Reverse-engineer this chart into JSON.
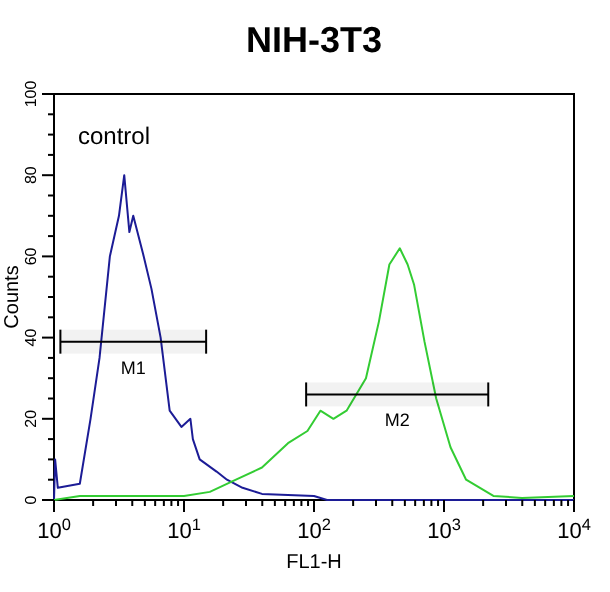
{
  "chart_data": {
    "type": "line",
    "title": "NIH-3T3",
    "xlabel": "FL1-H",
    "ylabel": "Counts",
    "log": "x",
    "xlim": [
      1,
      10000
    ],
    "xticks": [
      {
        "value": 1,
        "label": "10$^{0}$"
      },
      {
        "value": 10,
        "label": "10$^{1}$"
      },
      {
        "value": 100,
        "label": "10$^{2}$"
      },
      {
        "value": 1000,
        "label": "10$^{3}$"
      },
      {
        "value": 10000,
        "label": "10$^{4}$"
      }
    ],
    "ylim": [
      0,
      100
    ],
    "yticks": [
      0,
      20,
      40,
      60,
      80,
      100
    ],
    "grid": false,
    "line_style": "solid",
    "annotations": [
      "control"
    ],
    "bands": [
      {
        "axis": "x",
        "from": 1.12,
        "to": 14.8,
        "label": "M1"
      },
      {
        "axis": "x",
        "from": 87,
        "to": 2190,
        "label": "M2"
      }
    ],
    "series": [
      {
        "color": "#1c1c96",
        "x": [
          1,
          1.02,
          1.07,
          1.58,
          1.91,
          2.24,
          2.69,
          3.16,
          3.47,
          3.8,
          4.07,
          4.9,
          5.62,
          6.61,
          7.76,
          9.55,
          11.2,
          11.7,
          13.2,
          17.8,
          21.4,
          28.2,
          39.8,
          100,
          126,
          10000
        ],
        "values": [
          0,
          10,
          3,
          4,
          20,
          35,
          60,
          70,
          80,
          66,
          70,
          60,
          52,
          40,
          22,
          18,
          20,
          15,
          10,
          7,
          5,
          3,
          1.5,
          1,
          0,
          0
        ]
      },
      {
        "color": "#33cc33",
        "x": [
          1,
          1.58,
          10,
          15.8,
          25.1,
          39.8,
          63.1,
          89,
          112,
          141,
          178,
          251,
          316,
          380,
          457,
          525,
          589,
          708,
          871,
          1122,
          1479,
          2399,
          3981,
          10000
        ],
        "values": [
          0,
          1,
          1,
          2,
          5,
          8,
          14,
          17,
          22,
          20,
          22,
          30,
          44,
          58,
          62,
          58,
          53,
          39,
          25,
          13,
          5,
          1,
          0.5,
          1
        ]
      }
    ]
  }
}
